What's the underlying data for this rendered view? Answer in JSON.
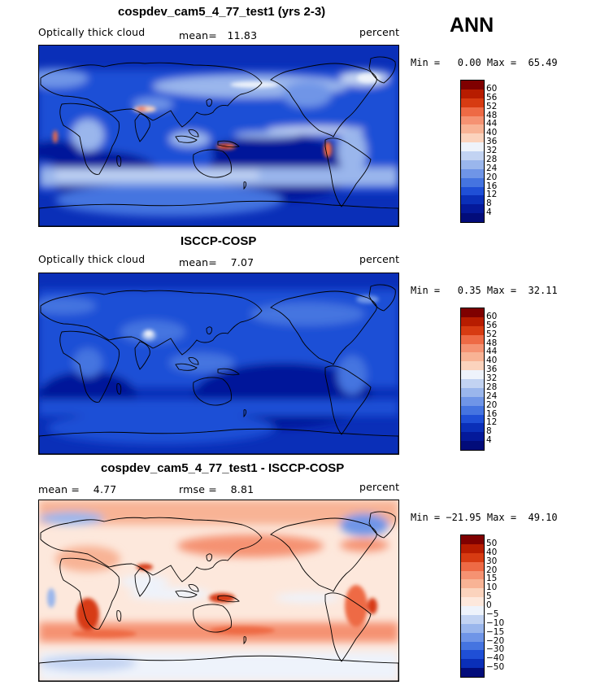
{
  "season": "ANN",
  "panels": [
    {
      "id": "model",
      "title": "cospdev_cam5_4_77_test1 (yrs 2-3)",
      "left_text": "Optically thick cloud",
      "middle_text": "mean=   11.83",
      "right_text": "percent",
      "minmax_text": "Min =   0.00 Max =  65.49",
      "colorbar_labels": [
        "60",
        "56",
        "52",
        "48",
        "44",
        "40",
        "36",
        "32",
        "28",
        "24",
        "20",
        "16",
        "12",
        "8",
        "4"
      ]
    },
    {
      "id": "obs",
      "title": "ISCCP-COSP",
      "left_text": "Optically thick cloud",
      "middle_text": "mean=    7.07",
      "right_text": "percent",
      "minmax_text": "Min =   0.35 Max =  32.11",
      "colorbar_labels": [
        "60",
        "56",
        "52",
        "48",
        "44",
        "40",
        "36",
        "32",
        "28",
        "24",
        "20",
        "16",
        "12",
        "8",
        "4"
      ]
    },
    {
      "id": "diff",
      "title": "cospdev_cam5_4_77_test1 - ISCCP-COSP",
      "left_text": "mean =    4.77",
      "middle_text": "rmse =    8.81",
      "right_text": "percent",
      "minmax_text": "Min = −21.95 Max =  49.10",
      "colorbar_labels": [
        "50",
        "40",
        "30",
        "20",
        "15",
        "10",
        "5",
        "0",
        "−5",
        "−10",
        "−15",
        "−20",
        "−30",
        "−40",
        "−50"
      ]
    }
  ],
  "colors": {
    "seq_scale_top_to_bottom": [
      "#7f0000",
      "#b71c00",
      "#d73b12",
      "#ee6a45",
      "#f59272",
      "#f8b395",
      "#fbd3bd",
      "#eef3fb",
      "#c2d3f2",
      "#9ab6ec",
      "#6f95e7",
      "#4574e0",
      "#1f4fd6",
      "#0a2fb8",
      "#04199a",
      "#020c7a"
    ],
    "div_scale_top_to_bottom": [
      "#7f0000",
      "#b71c00",
      "#d73b12",
      "#ee6a45",
      "#f59272",
      "#f8b395",
      "#fbd3bd",
      "#fde8dc",
      "#eef3fb",
      "#c2d3f2",
      "#9ab6ec",
      "#6f95e7",
      "#4574e0",
      "#1f4fd6",
      "#0a2fb8",
      "#020c7a"
    ]
  }
}
